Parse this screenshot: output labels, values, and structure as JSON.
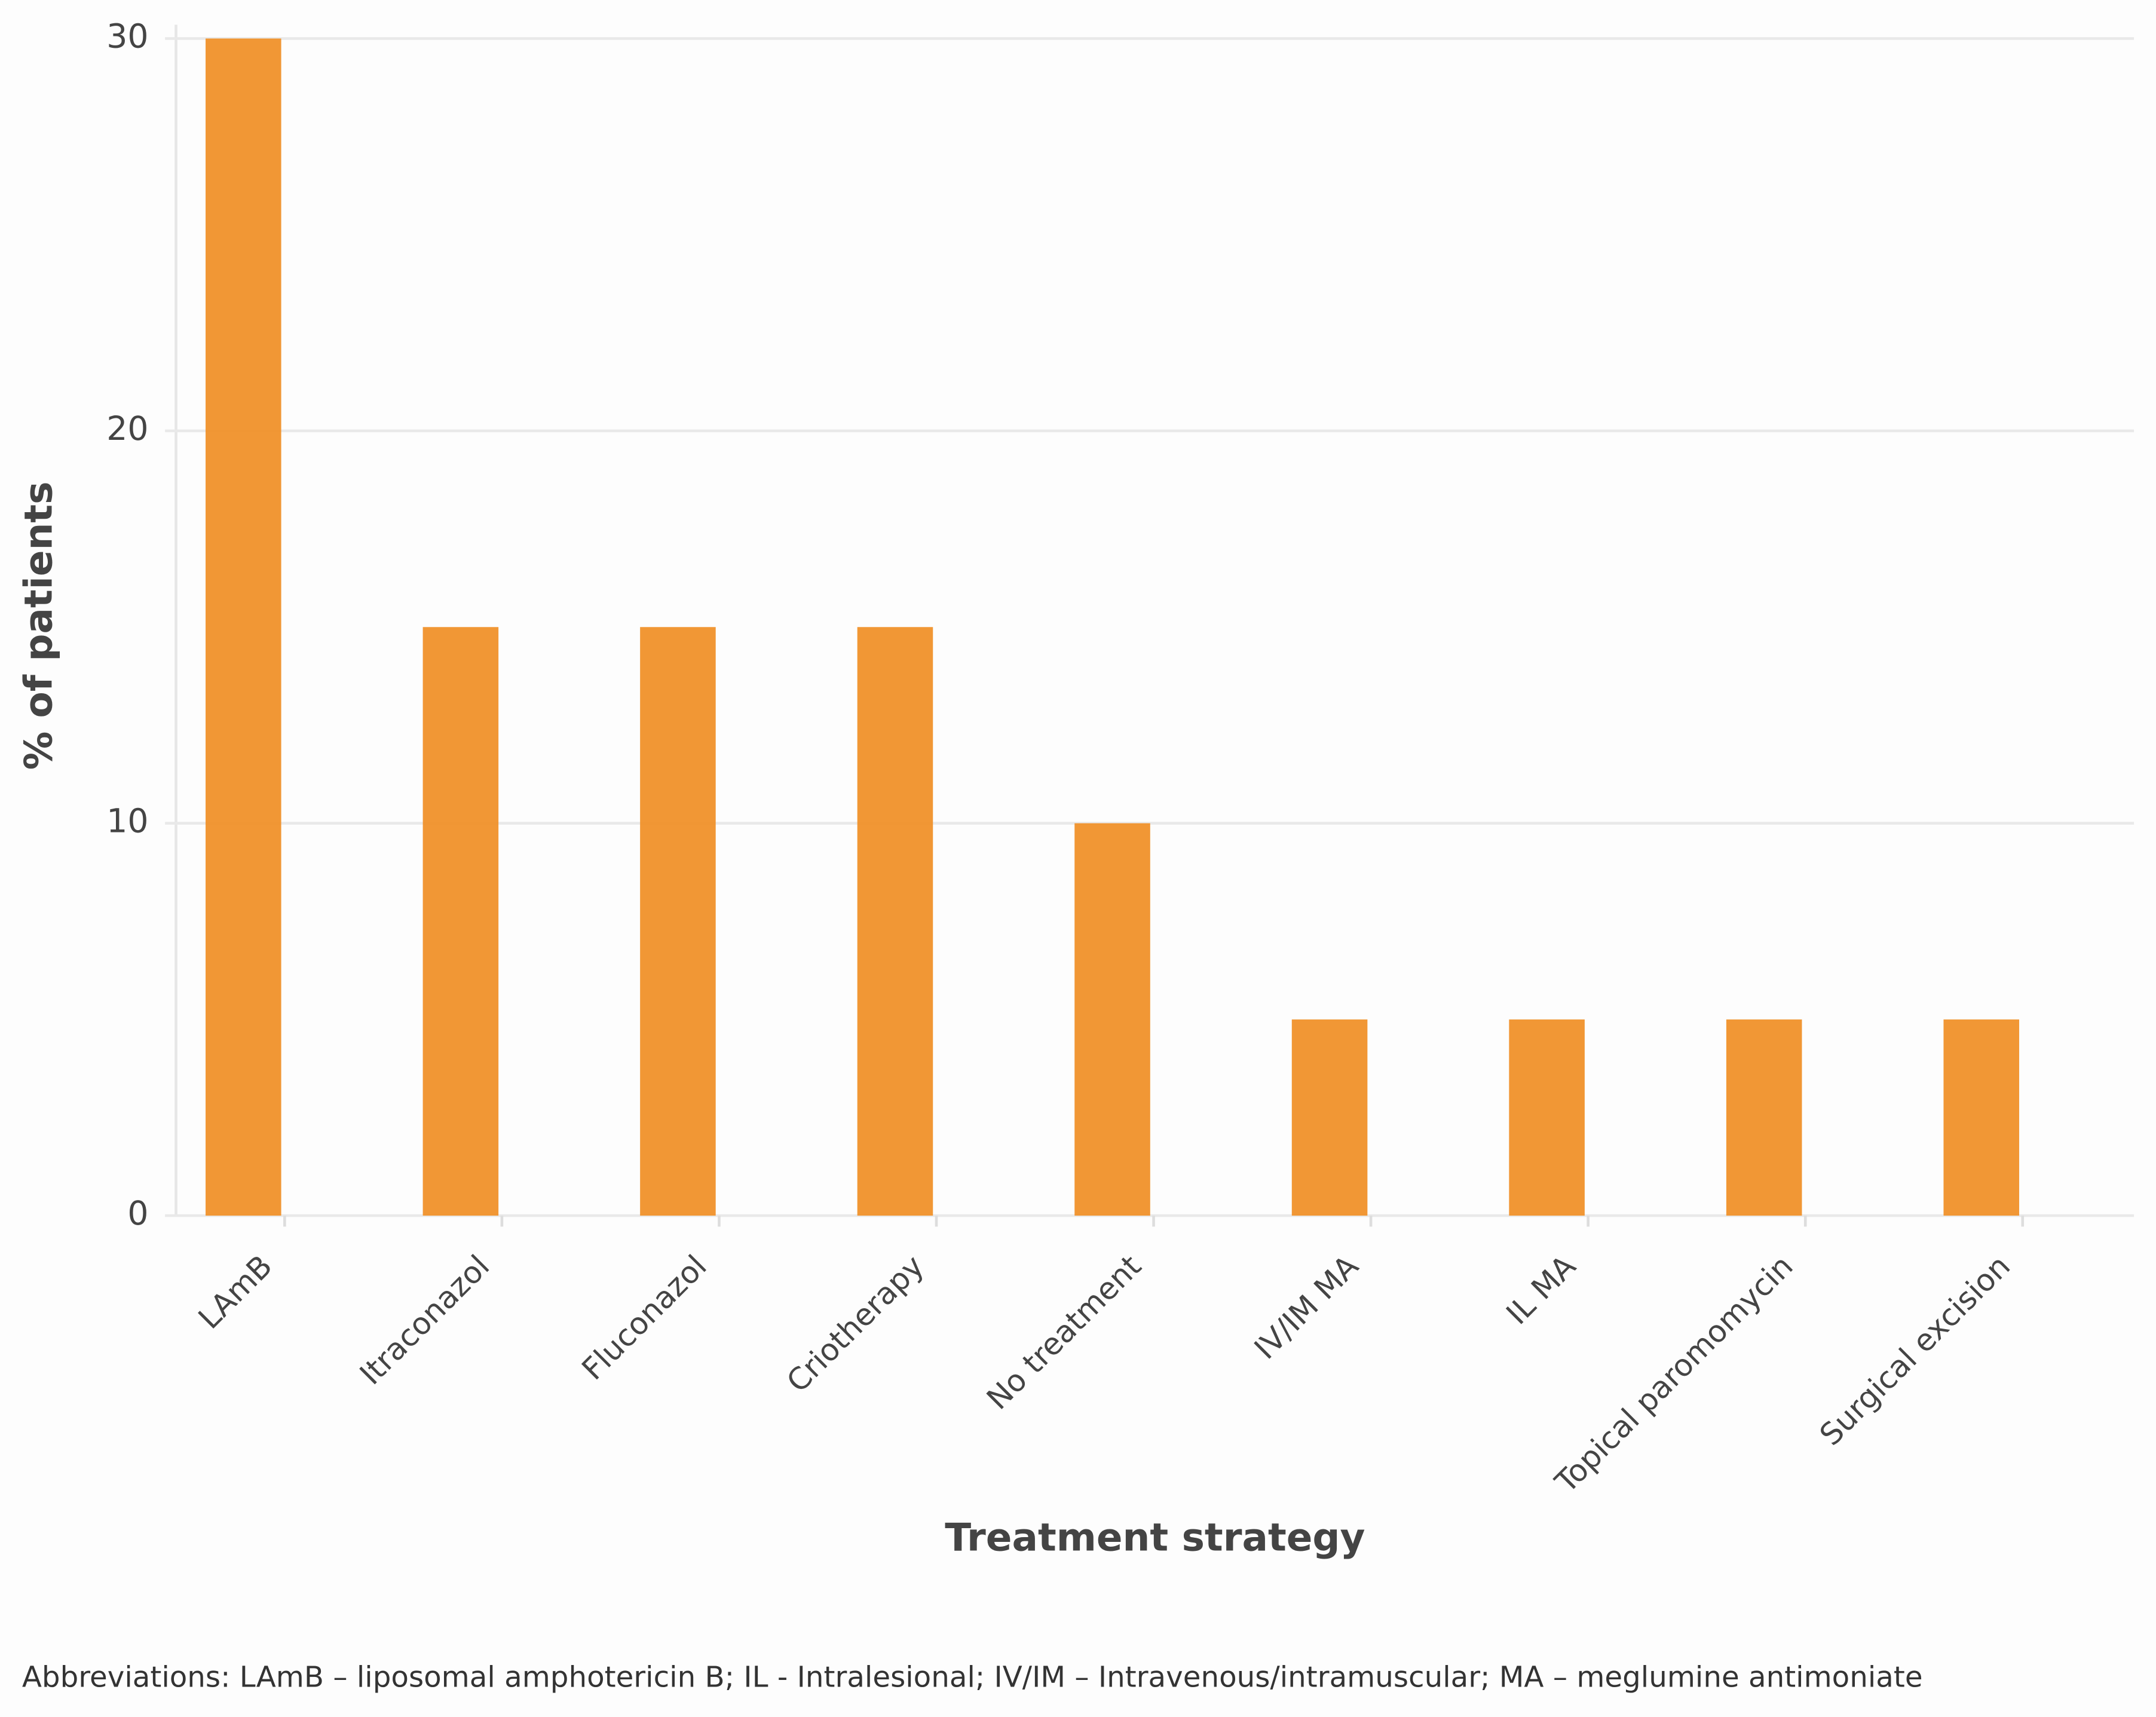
{
  "chart_data": {
    "type": "bar",
    "y_label": "% of patients",
    "x_label": "Treatment strategy",
    "footnote": "Abbreviations: LAmB – liposomal amphotericin B; IL - Intralesional; IV/IM – Intravenous/intramuscular; MA – meglumine antimoniate",
    "categories": [
      "LAmB",
      "Itraconazol",
      "Fluconazol",
      "Criotherapy",
      "No treatment",
      "IV/IM MA",
      "IL MA",
      "Topical paromomycin",
      "Surgical excision"
    ],
    "values": [
      30,
      15,
      15,
      15,
      10,
      5,
      5,
      5,
      5
    ],
    "color": "#f0912a",
    "ylim": [
      0,
      30
    ],
    "yticks": [
      0,
      10,
      20,
      30
    ],
    "grid": true
  }
}
